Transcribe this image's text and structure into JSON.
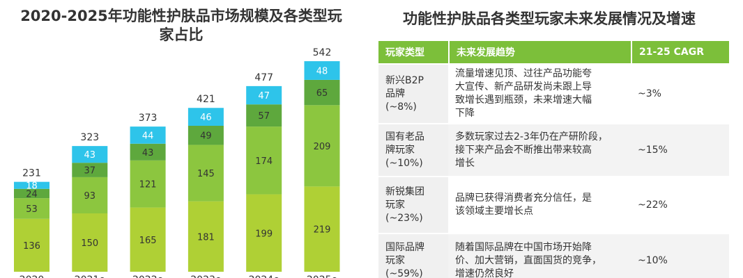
{
  "left_title": "2020-2025年功能性护肤品市场规模及各类型玩家占比",
  "chart_data": {
    "type": "bar",
    "stacked": true,
    "categories": [
      "2020",
      "2021e",
      "2022e",
      "2023e",
      "2024e",
      "2025e"
    ],
    "series": [
      {
        "values": [
          136,
          150,
          165,
          181,
          199,
          219
        ],
        "color": "#afd035"
      },
      {
        "values": [
          53,
          93,
          121,
          145,
          174,
          209
        ],
        "color": "#8cc63f"
      },
      {
        "values": [
          24,
          37,
          43,
          49,
          57,
          65
        ],
        "color": "#5ea83d"
      },
      {
        "values": [
          18,
          43,
          44,
          46,
          47,
          48
        ],
        "color": "#2ec4ea"
      }
    ],
    "totals": [
      231,
      323,
      373,
      421,
      477,
      542
    ],
    "ylim": [
      0,
      560
    ],
    "grid": false,
    "legend": "none"
  },
  "right_title": "功能性护肤品各类型玩家未来发展情况及增速",
  "table": {
    "headers": [
      "玩家类型",
      "未来发展趋势",
      "21-25 CAGR"
    ],
    "header_color": "#7cbf3a",
    "rows": [
      {
        "type": [
          "新兴B2P",
          "品牌",
          "(~8%)"
        ],
        "trend": [
          "流量增速见顶、过往产品功能夸",
          "大宣传、新产品研发尚未跟上导",
          "致增长遇到瓶颈，未来增速大幅",
          "下降"
        ],
        "cagr": "~3%"
      },
      {
        "type": [
          "国有老品",
          "牌玩家",
          "(~10%)"
        ],
        "trend": [
          "多数玩家过去2-3年仍在产研阶段，",
          "接下来产品会不断推出带来较高",
          "增长"
        ],
        "cagr": "~15%"
      },
      {
        "type": [
          "新锐集团",
          "玩家",
          "(~23%)"
        ],
        "trend": [
          "品牌已获得消费者充分信任，是",
          "该领域主要增长点"
        ],
        "cagr": "~22%"
      },
      {
        "type": [
          "国际品牌",
          "玩家",
          "(~59%)"
        ],
        "trend": [
          "随着国际品牌在中国市场开始降",
          "价、加大营销，直面国货的竞争，",
          "增速仍然良好"
        ],
        "cagr": "~10%"
      }
    ]
  }
}
